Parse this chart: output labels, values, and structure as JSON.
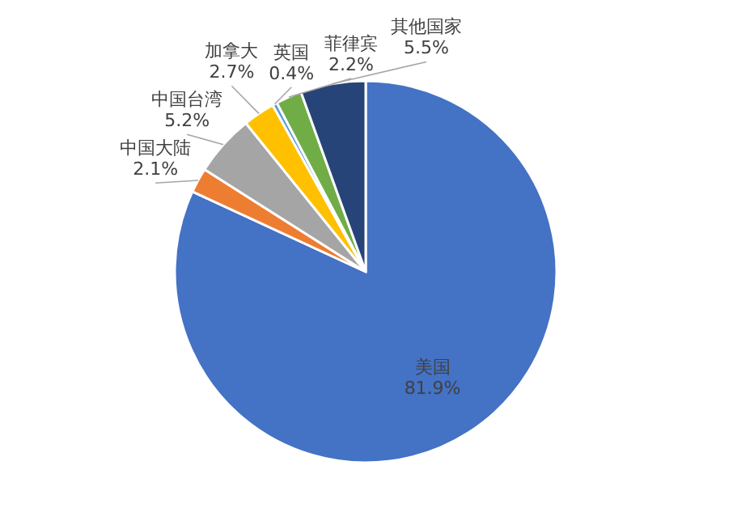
{
  "chart_data": {
    "type": "pie",
    "categories": [
      "美国",
      "中国大陆",
      "中国台湾",
      "加拿大",
      "英国",
      "菲律宾",
      "其他国家"
    ],
    "values": [
      81.9,
      2.1,
      5.2,
      2.7,
      0.4,
      2.2,
      5.5
    ],
    "colors": [
      "#4472c4",
      "#ed7d31",
      "#a5a5a5",
      "#ffc000",
      "#5b9bd5",
      "#70ad47",
      "#264478"
    ],
    "value_labels": [
      "81.9%",
      "2.1%",
      "5.2%",
      "2.7%",
      "0.4%",
      "2.2%",
      "5.5%"
    ]
  }
}
